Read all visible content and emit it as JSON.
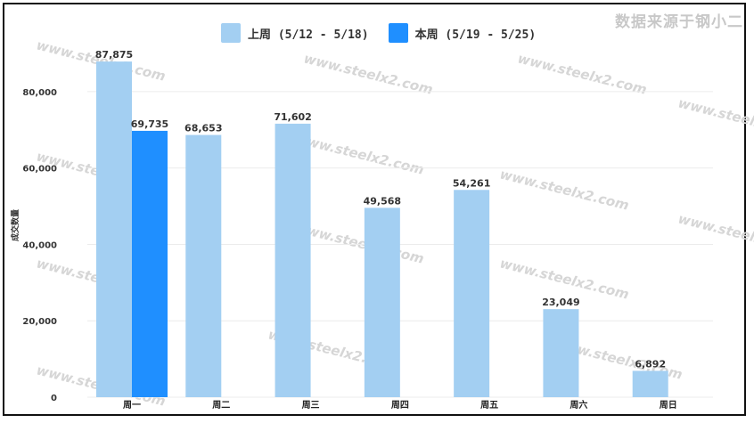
{
  "source_text": "数据来源于钢小二",
  "legend": [
    {
      "label": "上周 (5/12 - 5/18)",
      "color": "#a3cff2"
    },
    {
      "label": "本周 (5/19 - 5/25)",
      "color": "#1f8fff"
    }
  ],
  "chart_data": {
    "type": "bar",
    "categories": [
      "周一",
      "周二",
      "周三",
      "周四",
      "周五",
      "周六",
      "周日"
    ],
    "series": [
      {
        "name": "上周 (5/12 - 5/18)",
        "color": "#a3cff2",
        "values": [
          87875,
          68653,
          71602,
          49568,
          54261,
          23049,
          6892
        ]
      },
      {
        "name": "本周 (5/19 - 5/25)",
        "color": "#1f8fff",
        "values": [
          69735,
          null,
          null,
          null,
          null,
          null,
          null
        ]
      }
    ],
    "ylabel": "成交数量",
    "xlabel": "",
    "ylim": [
      0,
      90000
    ],
    "yticks": [
      0,
      20000,
      40000,
      60000,
      80000
    ],
    "grid": true,
    "legend_position": "top-center"
  },
  "watermark": "www.steelx2.com"
}
